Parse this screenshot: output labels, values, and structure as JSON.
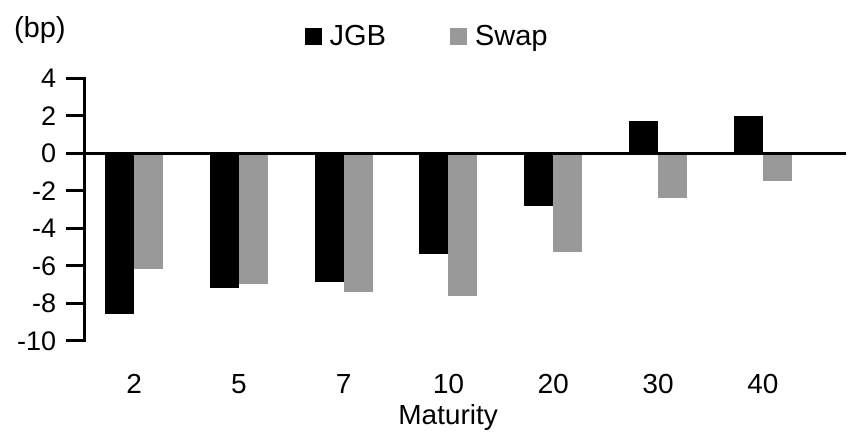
{
  "chart_data": {
    "type": "bar",
    "unit_label": "(bp)",
    "xlabel": "Maturity",
    "categories": [
      "2",
      "5",
      "7",
      "10",
      "20",
      "30",
      "40"
    ],
    "series": [
      {
        "name": "JGB",
        "color": "#000000",
        "values": [
          -8.6,
          -7.2,
          -6.9,
          -5.4,
          -2.8,
          1.7,
          2.0
        ]
      },
      {
        "name": "Swap",
        "color": "#999999",
        "values": [
          -6.2,
          -7.0,
          -7.4,
          -7.6,
          -5.3,
          -2.4,
          -1.5
        ]
      }
    ],
    "yticks": [
      4,
      2,
      0,
      -2,
      -4,
      -6,
      -8,
      -10
    ],
    "ylim": [
      -10,
      4
    ],
    "grid": false,
    "legend_position": "top-center",
    "axis_color": "#000000",
    "background_color": "#ffffff"
  }
}
